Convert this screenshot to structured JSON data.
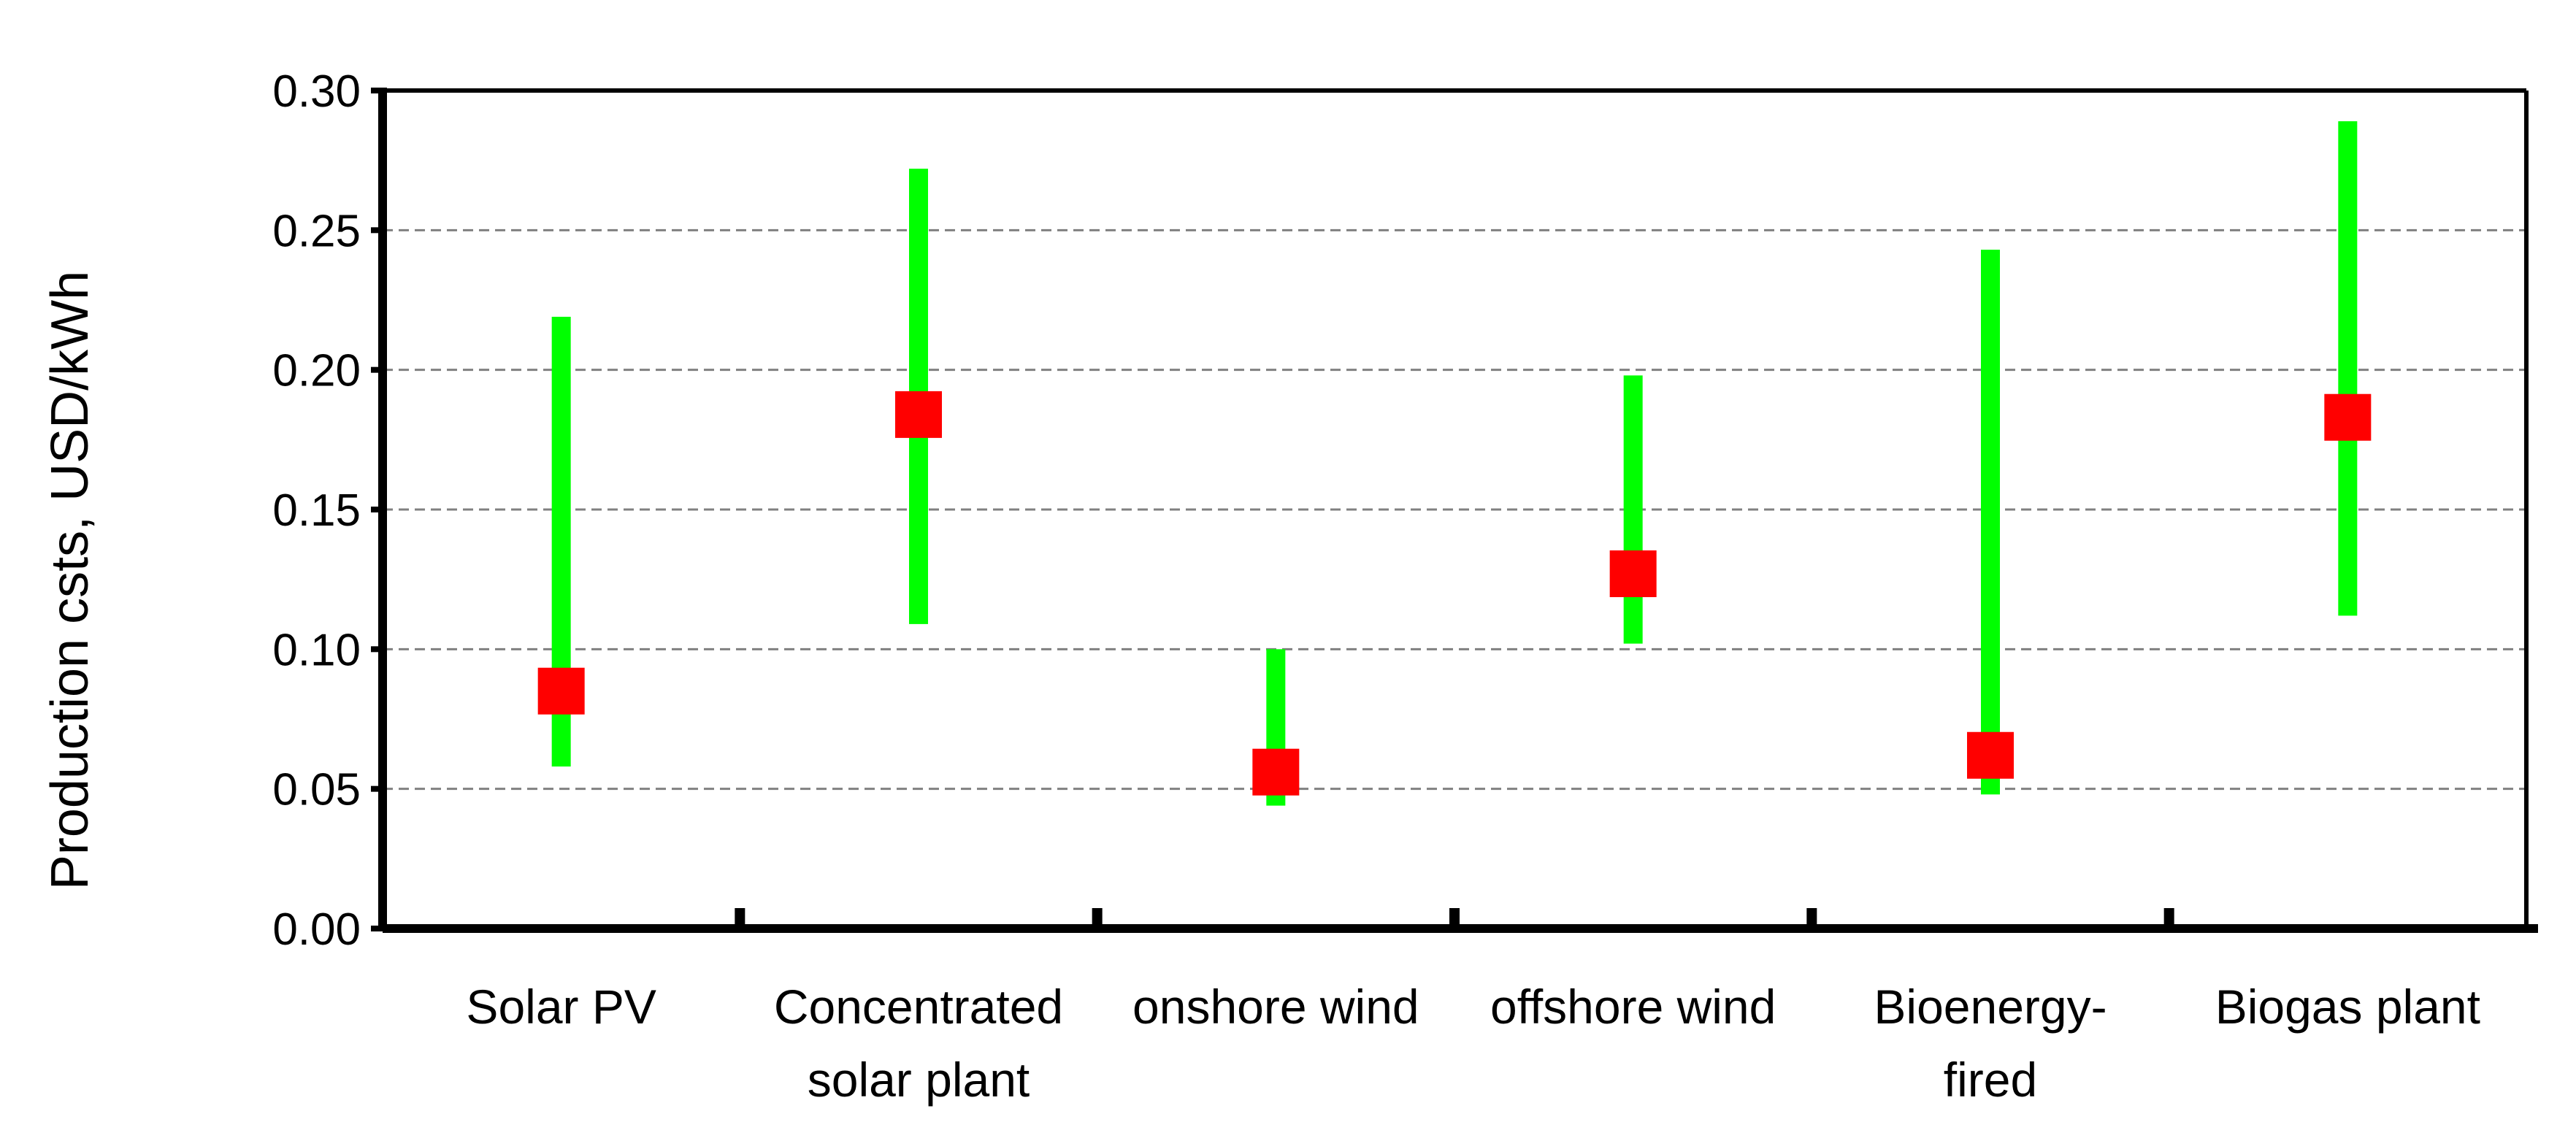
{
  "chart_data": {
    "type": "range",
    "categories": [
      [
        "Solar PV"
      ],
      [
        "Concentrated",
        "solar plant"
      ],
      [
        "onshore wind"
      ],
      [
        "offshore wind"
      ],
      [
        "Bioenergy-",
        "fired"
      ],
      [
        "Biogas plant"
      ]
    ],
    "series": [
      {
        "values_min": [
          0.058,
          0.109,
          0.044,
          0.102,
          0.048,
          0.112
        ]
      },
      {
        "values_max": [
          0.219,
          0.272,
          0.1,
          0.198,
          0.243,
          0.289
        ]
      },
      {
        "values_point": [
          0.085,
          0.184,
          0.056,
          0.127,
          0.062,
          0.183
        ]
      }
    ],
    "ylabel": "Production csts, USD/kWh",
    "xlabel": "",
    "title": "",
    "ylim": [
      0,
      0.3
    ],
    "yticks": [
      "0.00",
      "0.05",
      "0.10",
      "0.15",
      "0.20",
      "0.25",
      "0.30"
    ],
    "grid": "horizontal-dashed",
    "legend": "none",
    "colors": {
      "range": "#00ff00",
      "point": "#ff0000",
      "axis": "#000000",
      "grid": "#808080"
    }
  }
}
